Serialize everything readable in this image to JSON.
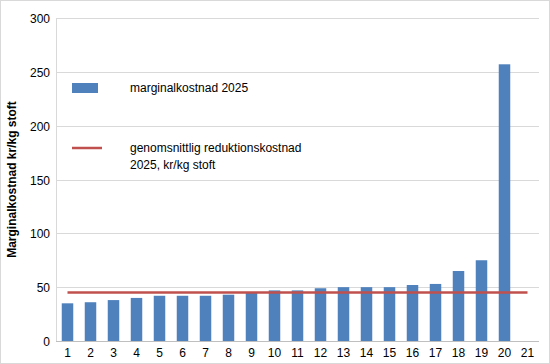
{
  "chart_data": {
    "type": "bar",
    "y_label": "Marginalkostnad kr/kg stoft",
    "categories": [
      "1",
      "2",
      "3",
      "4",
      "5",
      "6",
      "7",
      "8",
      "9",
      "10",
      "11",
      "12",
      "13",
      "14",
      "15",
      "16",
      "17",
      "18",
      "19",
      "20",
      "21"
    ],
    "series": [
      {
        "name": "marginalkostnad 2025",
        "type": "bar",
        "color": "#4f81bd",
        "values": [
          35,
          36,
          38,
          40,
          42,
          42,
          42,
          43,
          45,
          47,
          47,
          49,
          50,
          50,
          50,
          52,
          53,
          65,
          75,
          257,
          null
        ]
      },
      {
        "name": "genomsnittlig reduktionskostnad 2025, kr/kg stoft",
        "type": "line",
        "color": "#c0504d",
        "values": [
          45,
          45,
          45,
          45,
          45,
          45,
          45,
          45,
          45,
          45,
          45,
          45,
          45,
          45,
          45,
          45,
          45,
          45,
          45,
          45,
          45
        ]
      }
    ],
    "ylim": [
      0,
      300
    ],
    "yticks": [
      0,
      50,
      100,
      150,
      200,
      250,
      300
    ],
    "grid": true,
    "legend": "top-left"
  }
}
